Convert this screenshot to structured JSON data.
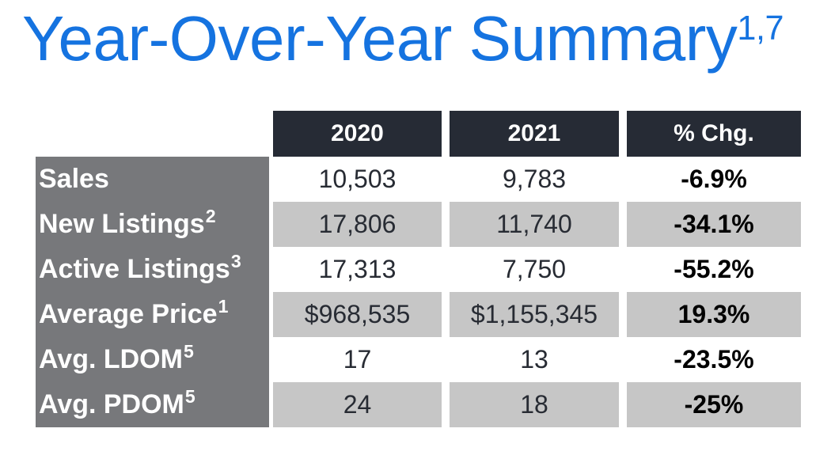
{
  "title": {
    "text": "Year-Over-Year Summary",
    "superscript": "1,7"
  },
  "table": {
    "columns": [
      "2020",
      "2021",
      "% Chg."
    ],
    "rows": [
      {
        "label": "Sales",
        "sup": "",
        "y2020": "10,503",
        "y2021": "9,783",
        "chg": "-6.9%"
      },
      {
        "label": "New Listings",
        "sup": "2",
        "y2020": "17,806",
        "y2021": "11,740",
        "chg": "-34.1%"
      },
      {
        "label": "Active Listings",
        "sup": "3",
        "y2020": "17,313",
        "y2021": "7,750",
        "chg": "-55.2%"
      },
      {
        "label": "Average Price",
        "sup": "1",
        "y2020": "$968,535",
        "y2021": "$1,155,345",
        "chg": "19.3%"
      },
      {
        "label": "Avg. LDOM",
        "sup": "5",
        "y2020": "17",
        "y2021": "13",
        "chg": "-23.5%"
      },
      {
        "label": "Avg. PDOM",
        "sup": "5",
        "y2020": "24",
        "y2021": "18",
        "chg": "-25%"
      }
    ]
  },
  "colors": {
    "title_blue": "#1573E0",
    "header_bg": "#262B35",
    "header_text": "#FFFFFF",
    "label_column_bg": "#77787B",
    "label_text": "#FFFFFF",
    "row_alt_bg": "#C6C6C6",
    "row_bg": "#FFFFFF",
    "value_text": "#272B33",
    "pct_chg_text": "#000000"
  }
}
